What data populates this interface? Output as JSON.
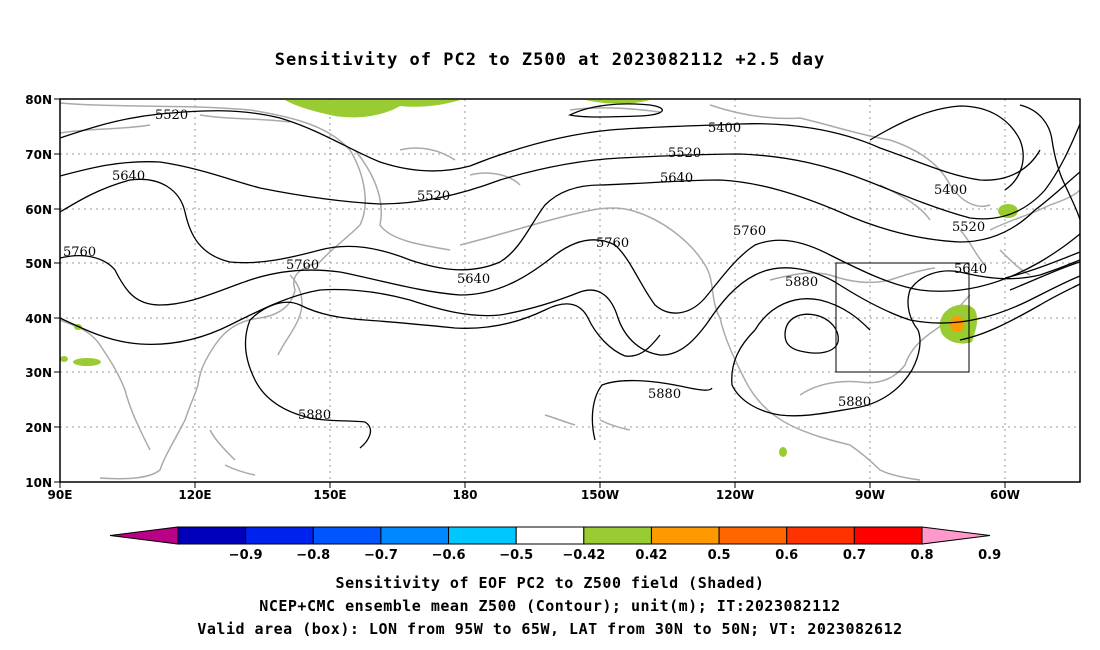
{
  "title": "Sensitivity of PC2 to Z500 at 2023082112 +2.5 day",
  "axes": {
    "lat_labels": [
      "80N",
      "70N",
      "60N",
      "50N",
      "40N",
      "30N",
      "20N",
      "10N"
    ],
    "lon_labels": [
      "90E",
      "120E",
      "150E",
      "180",
      "150W",
      "120W",
      "90W",
      "60W"
    ]
  },
  "contour_labels": {
    "c5520a": "5520",
    "c5640a": "5640",
    "c5760a": "5760",
    "c5520b": "5520",
    "c5760b": "5760",
    "c5880a": "5880",
    "c5640b": "5640",
    "c5760c": "5760",
    "c5400a": "5400",
    "c5520c": "5520",
    "c5640c": "5640",
    "c5760d": "5760",
    "c5880b": "5880",
    "c5880c": "5880",
    "c5400b": "5400",
    "c5520d": "5520",
    "c5640d": "5640",
    "c5880d": "5880"
  },
  "colorbar": {
    "labels": [
      "-0.9",
      "-0.8",
      "-0.7",
      "-0.6",
      "-0.5",
      "-0.42",
      "0.42",
      "0.5",
      "0.6",
      "0.7",
      "0.8",
      "0.9"
    ],
    "colors": [
      "#bb0088",
      "#0000bb",
      "#0022ee",
      "#0055ff",
      "#0088ff",
      "#00c8ff",
      "#ffffff",
      "#99cc33",
      "#ff9900",
      "#ff6600",
      "#ff3300",
      "#ff0000",
      "#ff99cc"
    ]
  },
  "valid_box": {
    "lon": [
      "95W",
      "65W"
    ],
    "lat": [
      "30N",
      "50N"
    ]
  },
  "captions": {
    "line1": "Sensitivity of EOF PC2 to Z500 field (Shaded)",
    "line2": "NCEP+CMC ensemble mean Z500 (Contour); unit(m); IT:2023082112",
    "line3": "Valid area (box): LON from 95W to 65W, LAT from 30N to 50N; VT: 2023082612"
  }
}
